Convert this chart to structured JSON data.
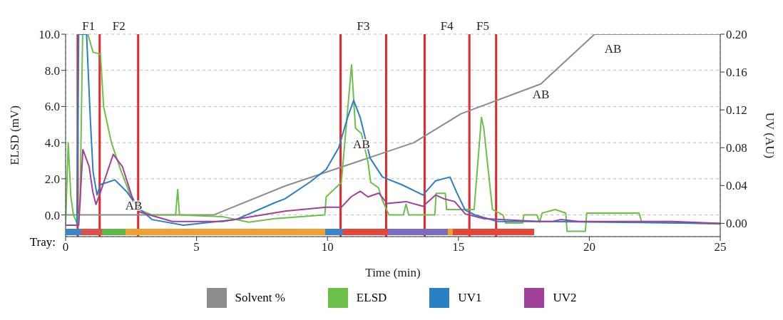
{
  "chart_data": {
    "type": "line",
    "xlabel": "Time (min)",
    "ylabel": "ELSD (mV)",
    "y2label": "UV (AU)",
    "xlim": [
      0,
      25
    ],
    "xticks": [
      0,
      5,
      10,
      15,
      20,
      25
    ],
    "ylim": [
      -1.2,
      10.0
    ],
    "yticks": [
      {
        "value": 0,
        "label": "0.0"
      },
      {
        "value": 2,
        "label": "2.0"
      },
      {
        "value": 4,
        "label": "4.0"
      },
      {
        "value": 6,
        "label": "6.0"
      },
      {
        "value": 8,
        "label": "8.0"
      },
      {
        "value": 10,
        "label": "10.0"
      }
    ],
    "y2lim": [
      -0.014,
      0.2
    ],
    "y2ticks": [
      {
        "value": 0,
        "label": "0.00"
      },
      {
        "value": 0.04,
        "label": "0.04"
      },
      {
        "value": 0.08,
        "label": "0.08"
      },
      {
        "value": 0.12,
        "label": "0.12"
      },
      {
        "value": 0.16,
        "label": "0.16"
      },
      {
        "value": 0.2,
        "label": "0.20"
      }
    ],
    "grid": true,
    "legend": "bottom",
    "marker": "none",
    "line_style": "solid",
    "series": [
      {
        "name": "Solvent %",
        "color": "#8c8c8c",
        "x": [
          0,
          5.65,
          8.38,
          13.3,
          15.1,
          18.15,
          20.2,
          25
        ],
        "values": [
          0,
          0,
          1.6,
          4.0,
          5.6,
          7.25,
          10.0,
          10.0
        ]
      },
      {
        "name": "ELSD",
        "color": "#6cc04a",
        "x": [
          0,
          0.1,
          0.2,
          0.3,
          0.45,
          0.55,
          0.65,
          0.85,
          1.05,
          1.33,
          1.45,
          1.75,
          2.1,
          2.5,
          2.8,
          3.3,
          4.2,
          4.28,
          4.35,
          6.0,
          7.0,
          8.0,
          9.9,
          9.95,
          10.53,
          10.92,
          11.07,
          11.3,
          11.55,
          11.65,
          11.95,
          12.1,
          12.35,
          12.9,
          13.0,
          13.1,
          14.1,
          14.15,
          14.5,
          14.55,
          15.6,
          15.88,
          15.97,
          16.3,
          16.7,
          16.8,
          17.45,
          17.5,
          18.0,
          18.1,
          18.2,
          18.7,
          19.1,
          19.15,
          19.85,
          19.9,
          21.9,
          22.0,
          25
        ],
        "values": [
          -0.5,
          4.0,
          1.0,
          0,
          -0.5,
          0.5,
          10.0,
          10.0,
          9.0,
          8.9,
          6.0,
          4.0,
          2.5,
          1.0,
          0.3,
          0,
          0,
          1.4,
          0,
          -0.1,
          -0.4,
          -0.2,
          0,
          1.0,
          1.8,
          8.3,
          4.8,
          4.5,
          2.9,
          1.8,
          1.5,
          0.8,
          0,
          0,
          0.6,
          0,
          0,
          1.2,
          1.2,
          0.3,
          0.3,
          5.4,
          4.8,
          0.3,
          0,
          -0.45,
          -0.45,
          0,
          0,
          -0.4,
          0.1,
          0.3,
          0.1,
          -0.9,
          -0.9,
          0.1,
          0.1,
          -0.4,
          -0.5
        ]
      },
      {
        "name": "UV1",
        "color": "#2a7fc4",
        "axis": "y2",
        "x": [
          0,
          0.43,
          0.5,
          0.8,
          0.95,
          1.05,
          1.2,
          1.33,
          1.88,
          2.35,
          2.75,
          3.3,
          4.5,
          6.5,
          8.0,
          8.38,
          9.35,
          9.95,
          10.43,
          10.77,
          11.0,
          11.25,
          11.63,
          12.1,
          12.83,
          13.65,
          14.13,
          14.68,
          14.93,
          15.26,
          15.63,
          16.49,
          18.06,
          25
        ],
        "values": [
          -0.002,
          -0.002,
          0.2,
          0.2,
          0.107,
          0.054,
          0.03,
          0.041,
          0.046,
          0.033,
          0.017,
          0.004,
          -0.002,
          0.004,
          0.022,
          0.026,
          0.044,
          0.057,
          0.08,
          0.112,
          0.13,
          0.112,
          0.069,
          0.049,
          0.041,
          0.03,
          0.045,
          0.049,
          0.033,
          0.014,
          0.009,
          0.002,
          0.002,
          0
        ]
      },
      {
        "name": "UV2",
        "color": "#a0409a",
        "axis": "y2",
        "x": [
          0,
          0.5,
          0.66,
          0.9,
          1.04,
          1.16,
          1.33,
          1.82,
          2.17,
          2.54,
          2.83,
          4.08,
          6.0,
          8.38,
          9.94,
          10.53,
          10.9,
          11.25,
          11.55,
          11.96,
          12.28,
          13.0,
          13.65,
          14.13,
          14.45,
          14.86,
          15.26,
          15.97,
          18.06,
          18.6,
          18.9,
          19.6,
          21.0,
          23.2,
          25
        ],
        "values": [
          -0.002,
          -0.002,
          0.078,
          0.06,
          0.033,
          0.02,
          0.033,
          0.073,
          0.06,
          0.028,
          0.012,
          0.002,
          0.002,
          0.013,
          0.017,
          0.017,
          0.028,
          0.034,
          0.028,
          0.032,
          0.021,
          0.023,
          0.018,
          0.03,
          0.026,
          0.023,
          0.01,
          0.005,
          0.002,
          0.002,
          0.004,
          0.002,
          0.002,
          0.002,
          0
        ]
      }
    ],
    "ref_lines": [
      {
        "axis": "x",
        "value": 0.46,
        "color": "#e8262a",
        "label": "F1"
      },
      {
        "axis": "x",
        "value": 1.3,
        "color": "#e8262a",
        "label": "F2"
      },
      {
        "axis": "x",
        "value": 2.77,
        "color": "#e8262a"
      },
      {
        "axis": "x",
        "value": 10.5,
        "color": "#e8262a",
        "label": "F3"
      },
      {
        "axis": "x",
        "value": 12.24,
        "color": "#e8262a"
      },
      {
        "axis": "x",
        "value": 13.71,
        "color": "#e8262a",
        "label": "F4"
      },
      {
        "axis": "x",
        "value": 15.42,
        "color": "#e8262a",
        "label": "F5"
      },
      {
        "axis": "x",
        "value": 16.44,
        "color": "#e8262a"
      }
    ],
    "annotations": [
      {
        "text": "AB",
        "x": 2.6,
        "y": 0
      },
      {
        "text": "AB",
        "x": 11.3,
        "y": 4.5
      },
      {
        "text": "AB",
        "x": 18.15,
        "y": 7.25
      },
      {
        "text": "AB",
        "x": 20.2,
        "y": 10.0
      },
      "Tray:"
    ]
  }
}
